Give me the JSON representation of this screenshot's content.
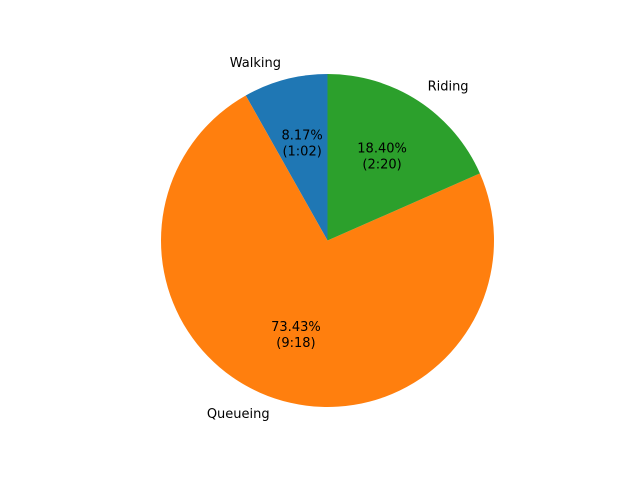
{
  "chart_data": {
    "type": "pie",
    "title": "",
    "start_angle_deg": 90,
    "direction": "counterclockwise",
    "slices": [
      {
        "label": "Walking",
        "value": 8.17,
        "percent_text": "8.17%",
        "time_text": "(1:02)",
        "color": "#1f77b4"
      },
      {
        "label": "Queueing",
        "value": 73.43,
        "percent_text": "73.43%",
        "time_text": "(9:18)",
        "color": "#ff7f0e"
      },
      {
        "label": "Riding",
        "value": 18.4,
        "percent_text": "18.40%",
        "time_text": "(2:20)",
        "color": "#2ca02c"
      }
    ],
    "legend": "none"
  }
}
